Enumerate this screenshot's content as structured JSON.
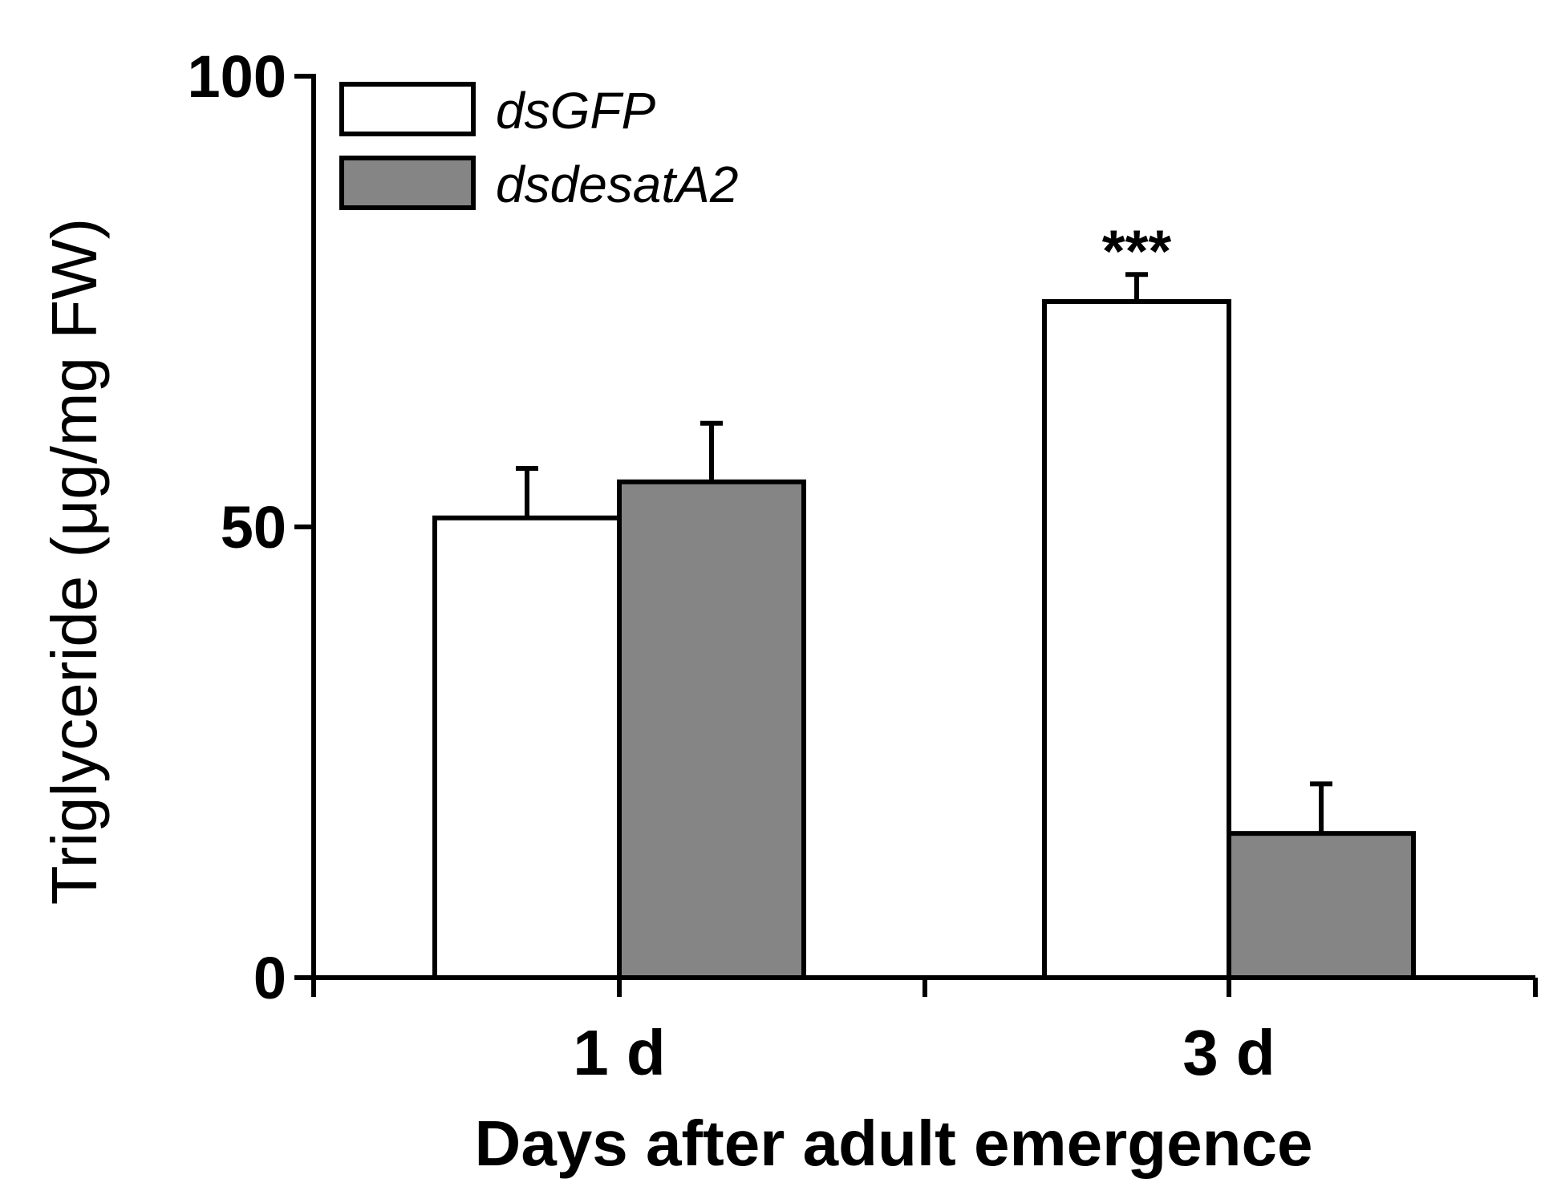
{
  "chart_data": {
    "type": "bar",
    "title": "",
    "xlabel": "Days after adult emergence",
    "ylabel": "Triglyceride (μg/mg FW)",
    "ylim": [
      0,
      100
    ],
    "yticks": [
      0,
      50,
      100
    ],
    "ytick_labels": [
      "0",
      "50",
      "100"
    ],
    "categories": [
      "1 d",
      "3 d"
    ],
    "series": [
      {
        "name": "dsGFP",
        "color": "#ffffff",
        "values": [
          51,
          75
        ],
        "errors": [
          5.5,
          3
        ]
      },
      {
        "name": "dsdesatA2",
        "color": "#858585",
        "values": [
          55,
          16
        ],
        "errors": [
          6.5,
          5.5
        ]
      }
    ],
    "annotations": [
      {
        "category": "3 d",
        "series": "dsGFP",
        "text": "***"
      }
    ],
    "legend": "top-left",
    "grid": false
  }
}
